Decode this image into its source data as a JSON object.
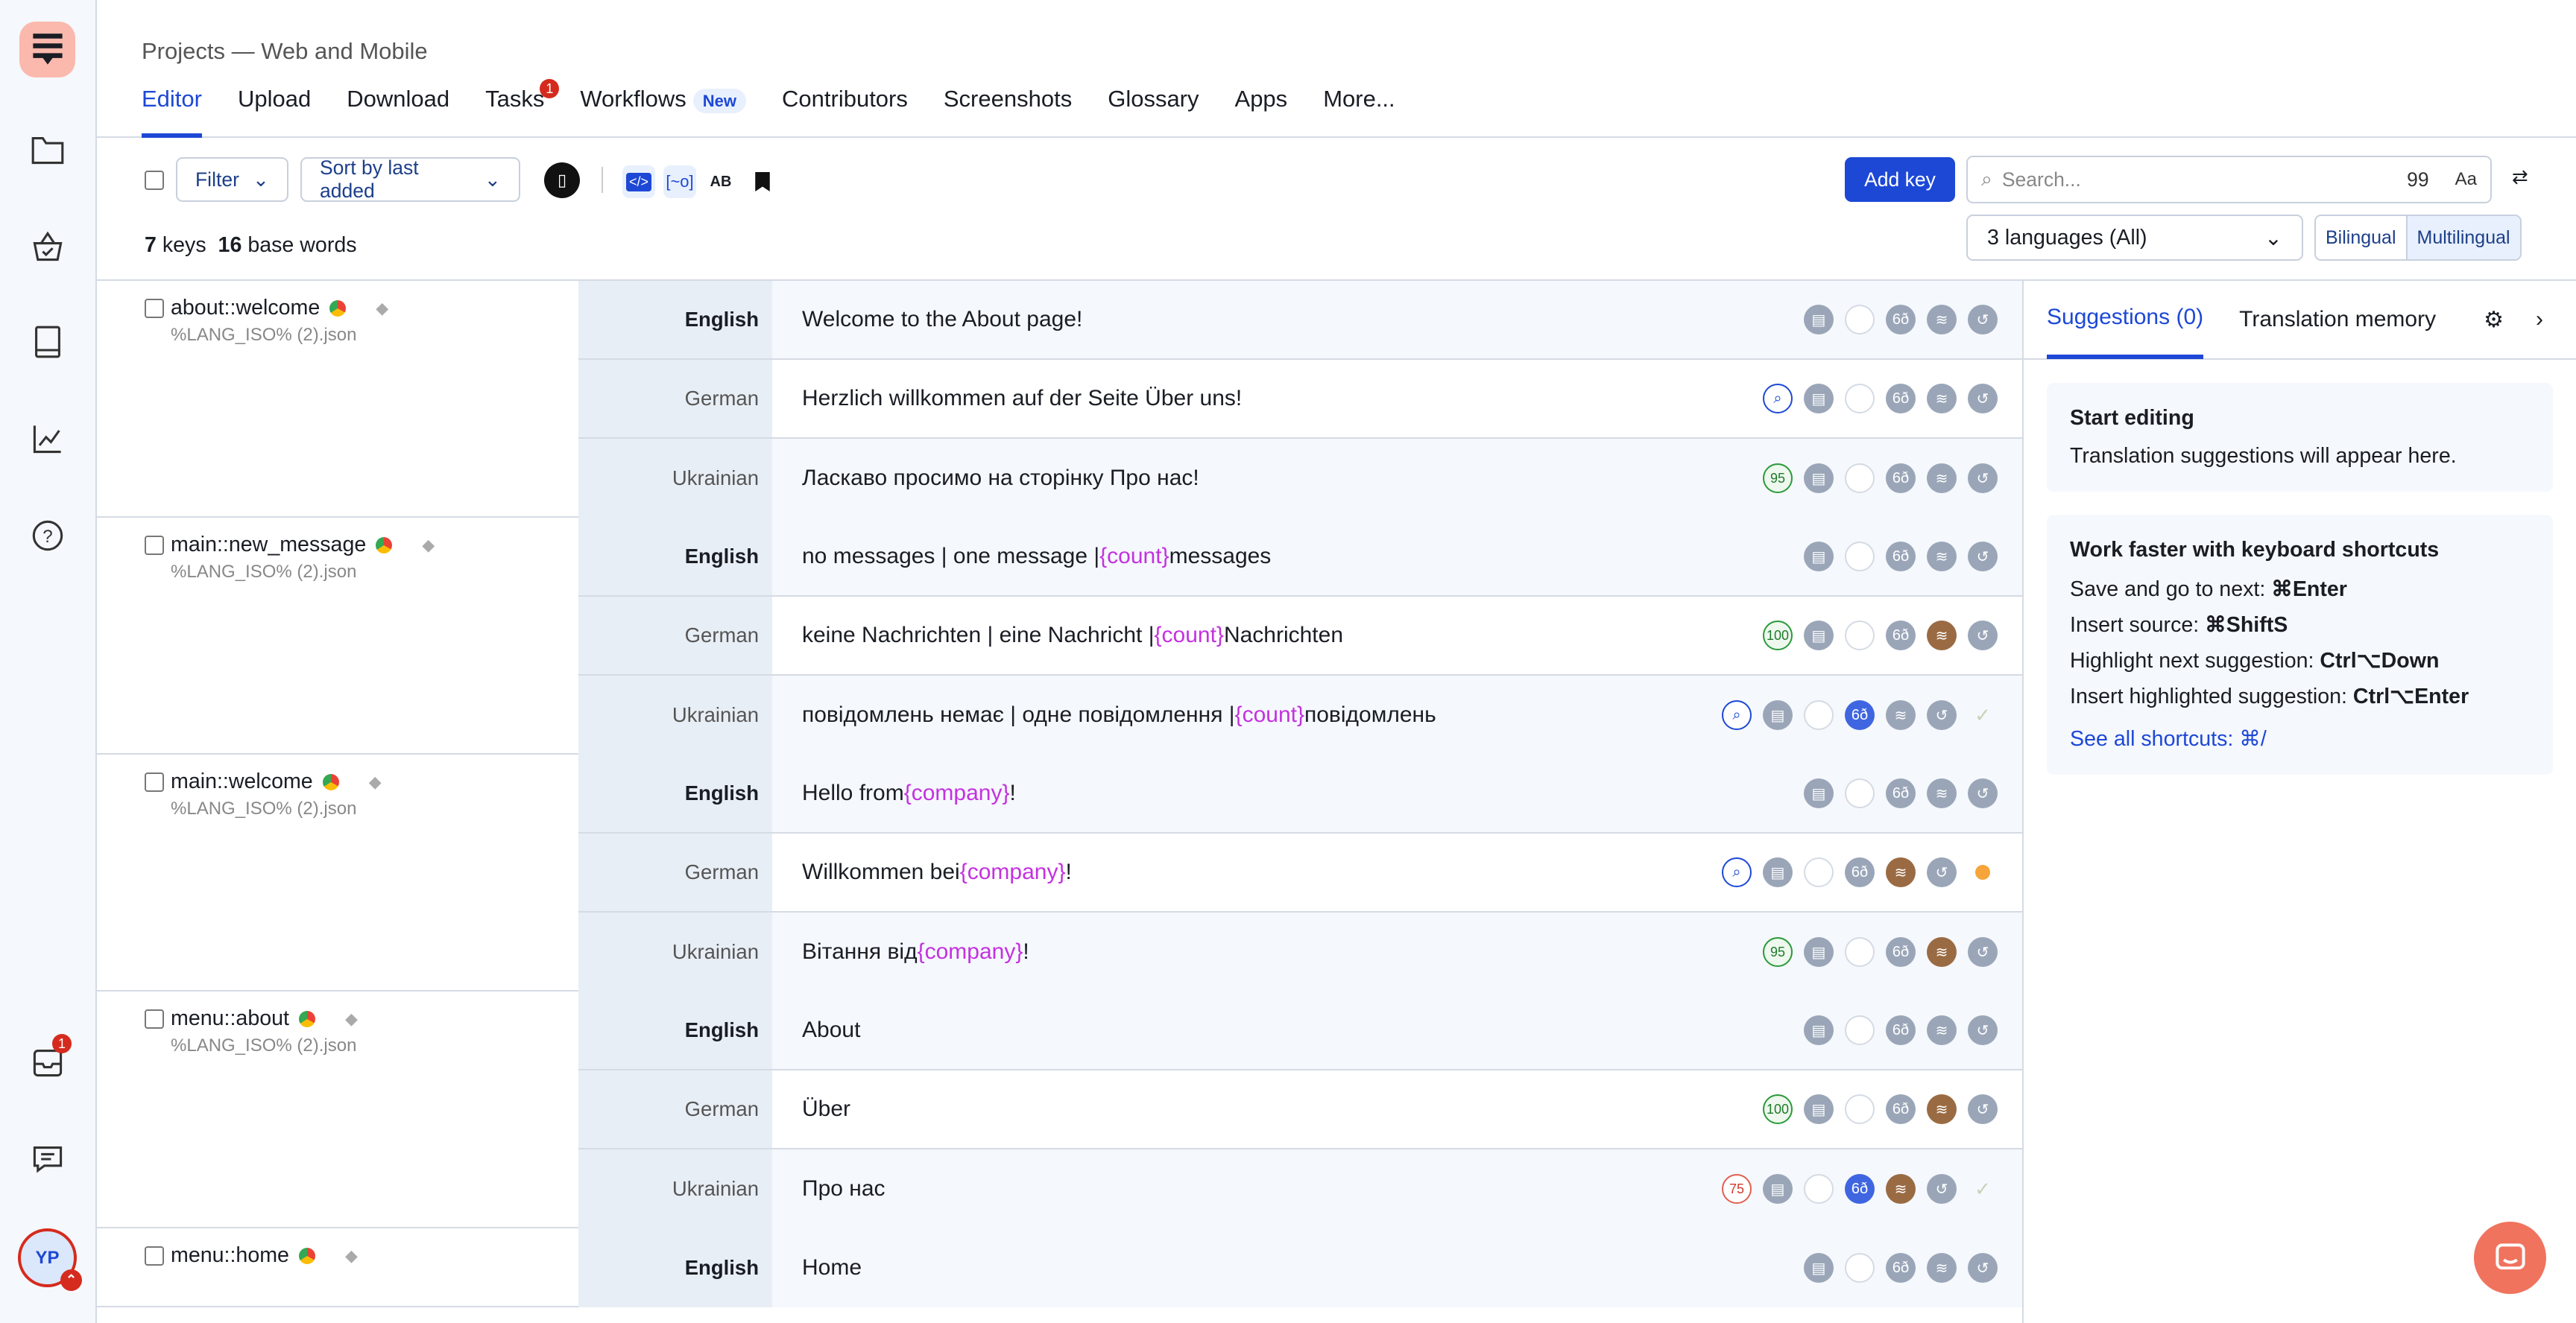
{
  "rail": {
    "items": [
      "projects-folder",
      "basket",
      "book",
      "chart",
      "help"
    ],
    "inbox_badge": "1",
    "avatar": "YP"
  },
  "header": {
    "breadcrumb": "Projects — Web and Mobile",
    "tabs": [
      {
        "label": "Editor",
        "active": true
      },
      {
        "label": "Upload"
      },
      {
        "label": "Download"
      },
      {
        "label": "Tasks",
        "badge": "1"
      },
      {
        "label": "Workflows",
        "pill": "New"
      },
      {
        "label": "Contributors"
      },
      {
        "label": "Screenshots"
      },
      {
        "label": "Glossary"
      },
      {
        "label": "Apps"
      },
      {
        "label": "More..."
      }
    ]
  },
  "toolbar": {
    "filter": "Filter",
    "sort": "Sort by last added",
    "add_key": "Add key",
    "search_placeholder": "Search...",
    "search_quote": "99",
    "search_case": "Aa",
    "languages": "3 languages (All)",
    "bilingual": "Bilingual",
    "multilingual": "Multilingual",
    "keys_count": "7",
    "keys_label": "keys",
    "words_count": "16",
    "words_label": "base words"
  },
  "keys": [
    {
      "name": "about::welcome",
      "file": "%LANG_ISO% (2).json",
      "rows": [
        {
          "lang": "English",
          "source": true,
          "text": "Welcome to the About page!",
          "icons": [
            "comment",
            "empty",
            "glasses",
            "waves",
            "history"
          ]
        },
        {
          "lang": "German",
          "text": "Herzlich willkommen auf der Seite Über uns!",
          "icons": [
            "search",
            "comment",
            "empty",
            "glasses",
            "waves",
            "history"
          ]
        },
        {
          "lang": "Ukrainian",
          "text": "Ласкаво просимо на сторінку Про нас!",
          "icons": [
            "95",
            "comment",
            "empty",
            "glasses",
            "waves",
            "history"
          ]
        }
      ]
    },
    {
      "name": "main::new_message",
      "file": "%LANG_ISO% (2).json",
      "rows": [
        {
          "lang": "English",
          "source": true,
          "text": "no messages | one message | {count} messages",
          "icons": [
            "comment",
            "empty",
            "glasses",
            "waves",
            "history"
          ]
        },
        {
          "lang": "German",
          "text": "keine Nachrichten | eine Nachricht | {count} Nachrichten",
          "icons": [
            "100",
            "comment",
            "empty",
            "glasses",
            "waves-brown",
            "history"
          ]
        },
        {
          "lang": "Ukrainian",
          "text": "повідомлень немає | одне повідомлення | {count} повідомлень",
          "icons": [
            "search",
            "comment",
            "empty",
            "glasses-blue",
            "waves",
            "history",
            "check"
          ]
        }
      ]
    },
    {
      "name": "main::welcome",
      "file": "%LANG_ISO% (2).json",
      "rows": [
        {
          "lang": "English",
          "source": true,
          "text": "Hello from {company}!",
          "icons": [
            "comment",
            "empty",
            "glasses",
            "waves",
            "history"
          ]
        },
        {
          "lang": "German",
          "text": "Willkommen bei {company}!",
          "icons": [
            "search",
            "comment",
            "empty",
            "glasses",
            "waves-brown",
            "history",
            "dot"
          ]
        },
        {
          "lang": "Ukrainian",
          "text": "Вітання від {company}!",
          "icons": [
            "95",
            "comment",
            "empty",
            "glasses",
            "waves-brown",
            "history"
          ]
        }
      ]
    },
    {
      "name": "menu::about",
      "file": "%LANG_ISO% (2).json",
      "rows": [
        {
          "lang": "English",
          "source": true,
          "text": "About",
          "icons": [
            "comment",
            "empty",
            "glasses",
            "waves",
            "history"
          ]
        },
        {
          "lang": "German",
          "text": "Über",
          "icons": [
            "100",
            "comment",
            "empty",
            "glasses",
            "waves-brown",
            "history"
          ]
        },
        {
          "lang": "Ukrainian",
          "text": "Про нас",
          "icons": [
            "75",
            "comment",
            "empty",
            "glasses-blue",
            "waves-brown",
            "history",
            "check"
          ]
        }
      ]
    },
    {
      "name": "menu::home",
      "file": "",
      "rows": [
        {
          "lang": "English",
          "source": true,
          "text": "Home",
          "icons": [
            "comment",
            "empty",
            "glasses",
            "waves",
            "history"
          ]
        }
      ]
    }
  ],
  "panel": {
    "tabs": [
      "Suggestions (0)",
      "Translation memory"
    ],
    "start_title": "Start editing",
    "start_text": "Translation suggestions will appear here.",
    "shortcuts_title": "Work faster with keyboard shortcuts",
    "shortcuts": [
      {
        "label": "Save and go to next: ",
        "key": "⌘Enter"
      },
      {
        "label": "Insert source: ",
        "key": "⌘ShiftS"
      },
      {
        "label": "Highlight next suggestion: ",
        "key": "Ctrl⌥Down"
      },
      {
        "label": "Insert highlighted suggestion: ",
        "key": "Ctrl⌥Enter"
      }
    ],
    "see_all": "See all shortcuts: ⌘/"
  },
  "colors": {
    "accent": "#1d48d6",
    "placeholder": "#c431e0",
    "logo_bg": "#fbb9ad",
    "chat": "#f0735e"
  }
}
